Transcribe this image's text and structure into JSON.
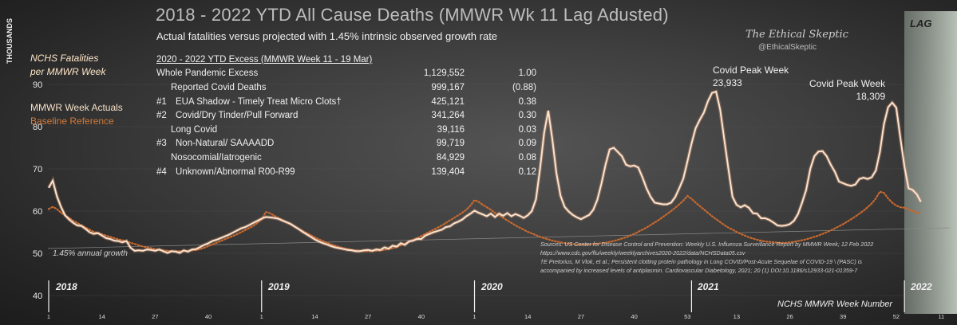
{
  "header": {
    "title": "2018 - 2022 YTD All Cause Deaths (MMWR Wk 11 Lag Adusted)",
    "subtitle": "Actual fatalities versus projected with 1.45% intrinsic observed growth  rate"
  },
  "brand": {
    "name": "The Ethical Skeptic",
    "handle": "@EthicalSkeptic"
  },
  "lag_label": "LAG",
  "y_axis_label": "THOUSANDS",
  "legend": {
    "per_week_line1": "NCHS Fatalities",
    "per_week_line2": "per MMWR Week",
    "actuals": "MMWR Week Actuals",
    "baseline": "Baseline Reference",
    "actual_color": "#f9dcc4",
    "baseline_color": "#c8692e"
  },
  "growth_note": "1.45% annual growth",
  "excess_table": {
    "header": "2020  - 2022 YTD Excess (MMWR Week 11 - 19 Mar)",
    "rows": [
      {
        "num": "",
        "label": "Whole Pandemic Excess",
        "value": "1,129,552",
        "ratio": "1.00",
        "indent": false
      },
      {
        "num": "",
        "label": "Reported Covid Deaths",
        "value": "999,167",
        "ratio": "(0.88)",
        "indent": true
      },
      {
        "num": "#1",
        "label": "EUA Shadow - Timely Treat Micro Clots†",
        "value": "425,121",
        "ratio": "0.38",
        "indent": false
      },
      {
        "num": "#2",
        "label": "Covid/Dry Tinder/Pull Forward",
        "value": "341,264",
        "ratio": "0.30",
        "indent": false
      },
      {
        "num": "",
        "label": "Long Covid",
        "value": "39,116",
        "ratio": "0.03",
        "indent": true
      },
      {
        "num": "#3",
        "label": "Non-Natural/ SAAAADD",
        "value": "99,719",
        "ratio": "0.09",
        "indent": false
      },
      {
        "num": "",
        "label": "Nosocomial/Iatrogenic",
        "value": "84,929",
        "ratio": "0.08",
        "indent": true
      },
      {
        "num": "#4",
        "label": "Unknown/Abnormal R00-R99",
        "value": "139,404",
        "ratio": "0.12",
        "indent": false
      }
    ]
  },
  "annotations": {
    "peak1_line1": "Covid Peak Week",
    "peak1_line2": "23,933",
    "peak2_line1": "Covid Peak Week",
    "peak2_line2": "18,309"
  },
  "years": [
    "2018",
    "2019",
    "2020",
    "2021",
    "2022"
  ],
  "x_axis_title": "NCHS MMWR Week Number",
  "sources": {
    "line1": "Sources: US Center for Disease Control and Prevention: Weekly U.S. Influenza Surveillance  Report by MMWR Week; 12 Feb 2022",
    "line2": "https://www.cdc.gov/flu/weekly/weeklyarchives2020-2022/data/NCHSData05.csv",
    "line3": "†E Pretorius, M Vlok, et al.; Persistent clotting protein pathology in Long COVID/Post-Acute Sequelae of COVID-19 \\ (PASC) is",
    "line4": "accompanied by increased levels of antiplasmin. Cardiovascular Diabetology, 2021; 20 (1) DOI:10.1186/s12933-021-01359-7"
  },
  "chart_data": {
    "type": "line",
    "title": "2018 - 2022 YTD All Cause Deaths (MMWR Wk 11 Lag Adusted)",
    "ylabel": "THOUSANDS",
    "xlabel": "NCHS MMWR Week Number",
    "ylim": [
      40,
      95
    ],
    "y_ticks": [
      40,
      50,
      60,
      70,
      80,
      90
    ],
    "x_tick_labels": [
      "1",
      "14",
      "27",
      "40",
      "1",
      "14",
      "27",
      "40",
      "1",
      "14",
      "27",
      "40",
      "53",
      "13",
      "26",
      "39",
      "52",
      "11"
    ],
    "x_tick_index": [
      0,
      13,
      26,
      39,
      52,
      65,
      78,
      91,
      104,
      117,
      130,
      143,
      156,
      168,
      181,
      194,
      207,
      218
    ],
    "year_start_index": [
      0,
      52,
      104,
      157,
      209
    ],
    "lag_start_index": 209,
    "series": [
      {
        "name": "MMWR Week Actuals",
        "values": [
          65.5,
          67.2,
          63.5,
          61.0,
          59.0,
          58.0,
          57.2,
          56.6,
          56.5,
          55.8,
          55.0,
          54.6,
          54.8,
          54.2,
          53.6,
          53.4,
          53.0,
          52.9,
          52.6,
          52.9,
          51.3,
          50.6,
          50.7,
          50.6,
          50.9,
          50.8,
          50.6,
          50.9,
          50.5,
          50.1,
          50.5,
          50.4,
          50.1,
          50.7,
          50.4,
          50.9,
          51.0,
          51.5,
          52.0,
          52.4,
          52.9,
          53.2,
          53.6,
          54.0,
          54.4,
          54.9,
          55.4,
          55.9,
          56.2,
          56.7,
          57.2,
          57.7,
          58.2,
          58.6,
          58.5,
          58.4,
          58.2,
          57.8,
          57.4,
          57.0,
          56.4,
          55.8,
          55.1,
          54.5,
          53.9,
          53.3,
          52.8,
          52.4,
          52.1,
          51.7,
          51.4,
          51.2,
          51.0,
          50.8,
          50.7,
          50.5,
          50.5,
          50.7,
          50.8,
          50.6,
          50.9,
          50.8,
          51.4,
          51.1,
          51.8,
          51.6,
          52.4,
          52.0,
          52.8,
          53.0,
          53.4,
          53.4,
          54.2,
          54.6,
          55.0,
          55.3,
          55.6,
          56.2,
          56.4,
          57.1,
          57.5,
          58.0,
          58.8,
          59.4,
          60.1,
          59.6,
          59.2,
          58.8,
          59.4,
          58.6,
          59.4,
          58.9,
          59.5,
          58.8,
          59.3,
          58.9,
          58.4,
          59.0,
          60.0,
          62.8,
          70.0,
          78.5,
          83.8,
          77.0,
          69.0,
          63.6,
          61.0,
          59.9,
          59.1,
          58.5,
          58.1,
          58.6,
          59.1,
          60.3,
          62.7,
          66.5,
          71.0,
          74.6,
          75.0,
          74.0,
          73.0,
          71.0,
          70.6,
          70.8,
          70.3,
          68.0,
          65.4,
          63.4,
          62.0,
          61.8,
          61.6,
          61.6,
          62.0,
          63.3,
          65.4,
          67.7,
          71.8,
          76.0,
          79.6,
          81.6,
          83.3,
          86.0,
          88.0,
          88.3,
          84.0,
          77.0,
          70.0,
          63.4,
          61.5,
          60.9,
          61.4,
          60.8,
          59.5,
          59.4,
          58.3,
          58.3,
          57.9,
          57.3,
          56.6,
          56.5,
          56.6,
          56.9,
          57.7,
          59.3,
          62.0,
          65.0,
          70.0,
          73.0,
          74.1,
          74.2,
          73.0,
          71.0,
          69.3,
          67.0,
          66.6,
          66.2,
          66.0,
          66.3,
          67.6,
          67.9,
          67.6,
          68.0,
          69.6,
          74.0,
          80.6,
          84.6,
          85.7,
          84.5,
          77.4,
          70.5,
          65.4,
          65.0,
          64.0,
          62.2
        ]
      },
      {
        "name": "Baseline Reference",
        "values": [
          60.5,
          61.0,
          60.5,
          59.6,
          59.0,
          58.4,
          57.7,
          57.2,
          56.6,
          56.1,
          55.6,
          55.1,
          54.8,
          54.5,
          54.2,
          53.9,
          53.6,
          53.3,
          53.1,
          52.8,
          52.5,
          52.2,
          51.9,
          51.6,
          51.4,
          51.2,
          51.0,
          50.8,
          50.7,
          50.6,
          50.5,
          50.5,
          50.5,
          50.5,
          50.6,
          50.7,
          50.8,
          51.0,
          51.3,
          51.7,
          52.1,
          52.5,
          52.9,
          53.3,
          53.7,
          54.1,
          54.5,
          55.0,
          55.5,
          56.0,
          56.5,
          57.2,
          58.0,
          59.8,
          59.5,
          59.0,
          58.4,
          57.9,
          57.4,
          56.9,
          56.3,
          55.8,
          55.3,
          54.8,
          54.3,
          53.8,
          53.3,
          52.9,
          52.5,
          52.1,
          51.8,
          51.5,
          51.2,
          51.0,
          50.8,
          50.7,
          50.6,
          50.5,
          50.5,
          50.5,
          50.6,
          50.7,
          50.8,
          51.0,
          51.2,
          51.5,
          51.9,
          52.3,
          52.8,
          53.2,
          53.6,
          54.1,
          54.6,
          55.1,
          55.6,
          56.1,
          56.6,
          57.2,
          57.8,
          58.4,
          59.0,
          59.6,
          60.3,
          61.3,
          62.6,
          62.2,
          61.5,
          60.9,
          60.3,
          59.6,
          59.0,
          58.4,
          57.8,
          57.2,
          56.6,
          56.1,
          55.6,
          55.1,
          54.7,
          54.3,
          53.9,
          53.6,
          53.3,
          53.0,
          52.8,
          52.6,
          52.4,
          52.3,
          52.2,
          52.1,
          52.1,
          52.1,
          52.1,
          52.2,
          52.3,
          52.4,
          52.5,
          52.7,
          52.9,
          53.2,
          53.5,
          53.8,
          54.2,
          54.6,
          55.1,
          55.6,
          56.1,
          56.7,
          57.3,
          57.9,
          58.6,
          59.3,
          60.0,
          60.8,
          61.6,
          62.5,
          63.6,
          62.9,
          62.0,
          61.2,
          60.4,
          59.6,
          58.8,
          58.1,
          57.4,
          56.7,
          56.1,
          55.6,
          55.1,
          54.6,
          54.2,
          53.8,
          53.5,
          53.2,
          53.0,
          52.8,
          52.7,
          52.6,
          52.5,
          52.5,
          52.5,
          52.6,
          52.7,
          52.9,
          53.1,
          53.3,
          53.6,
          53.9,
          54.2,
          54.6,
          55.0,
          55.4,
          55.9,
          56.4,
          56.9,
          57.5,
          58.1,
          58.7,
          59.4,
          60.1,
          60.9,
          61.8,
          63.0,
          64.6,
          64.3,
          63.0,
          62.0,
          61.3,
          60.9,
          60.8,
          60.4,
          60.0,
          59.7,
          59.4
        ]
      }
    ]
  }
}
